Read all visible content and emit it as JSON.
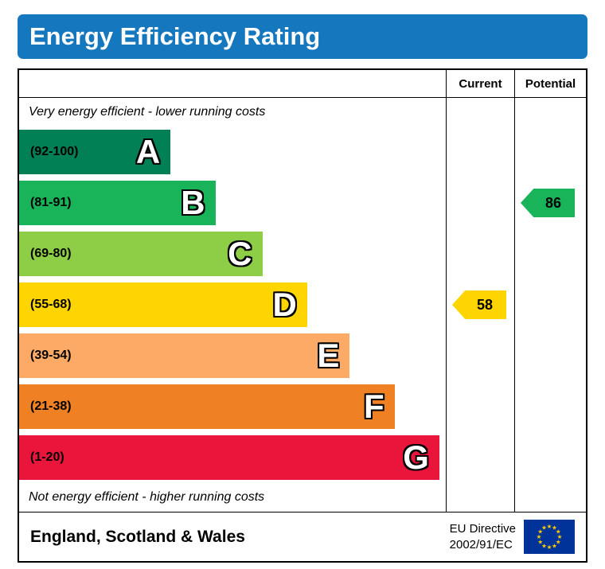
{
  "title": "Energy Efficiency Rating",
  "columns": {
    "current": "Current",
    "potential": "Potential"
  },
  "notes": {
    "top": "Very energy efficient - lower running costs",
    "bottom": "Not energy efficient - higher running costs"
  },
  "chart_data": {
    "type": "bar",
    "title": "Energy Efficiency Rating",
    "bands": [
      {
        "letter": "A",
        "range_label": "(92-100)",
        "min": 92,
        "max": 100,
        "color": "#008054",
        "width_pct": 35.5
      },
      {
        "letter": "B",
        "range_label": "(81-91)",
        "min": 81,
        "max": 91,
        "color": "#19b459",
        "width_pct": 46
      },
      {
        "letter": "C",
        "range_label": "(69-80)",
        "min": 69,
        "max": 80,
        "color": "#8dce46",
        "width_pct": 57
      },
      {
        "letter": "D",
        "range_label": "(55-68)",
        "min": 55,
        "max": 68,
        "color": "#ffd500",
        "width_pct": 67.5
      },
      {
        "letter": "E",
        "range_label": "(39-54)",
        "min": 39,
        "max": 54,
        "color": "#fcaa65",
        "width_pct": 77.5
      },
      {
        "letter": "F",
        "range_label": "(21-38)",
        "min": 21,
        "max": 38,
        "color": "#ef8023",
        "width_pct": 88
      },
      {
        "letter": "G",
        "range_label": "(1-20)",
        "min": 1,
        "max": 20,
        "color": "#e9153b",
        "width_pct": 98.5
      }
    ],
    "current": {
      "label": "Current",
      "value": 58,
      "band": "D",
      "color": "#ffd500"
    },
    "potential": {
      "label": "Potential",
      "value": 86,
      "band": "B",
      "color": "#19b459"
    }
  },
  "footer": {
    "region": "England, Scotland & Wales",
    "directive_line1": "EU Directive",
    "directive_line2": "2002/91/EC"
  },
  "colors": {
    "header_background": "#1577bd",
    "header_text": "#ffffff",
    "border": "#000000"
  },
  "eu_flag": {
    "background": "#003399",
    "stars": "#ffcc00"
  }
}
